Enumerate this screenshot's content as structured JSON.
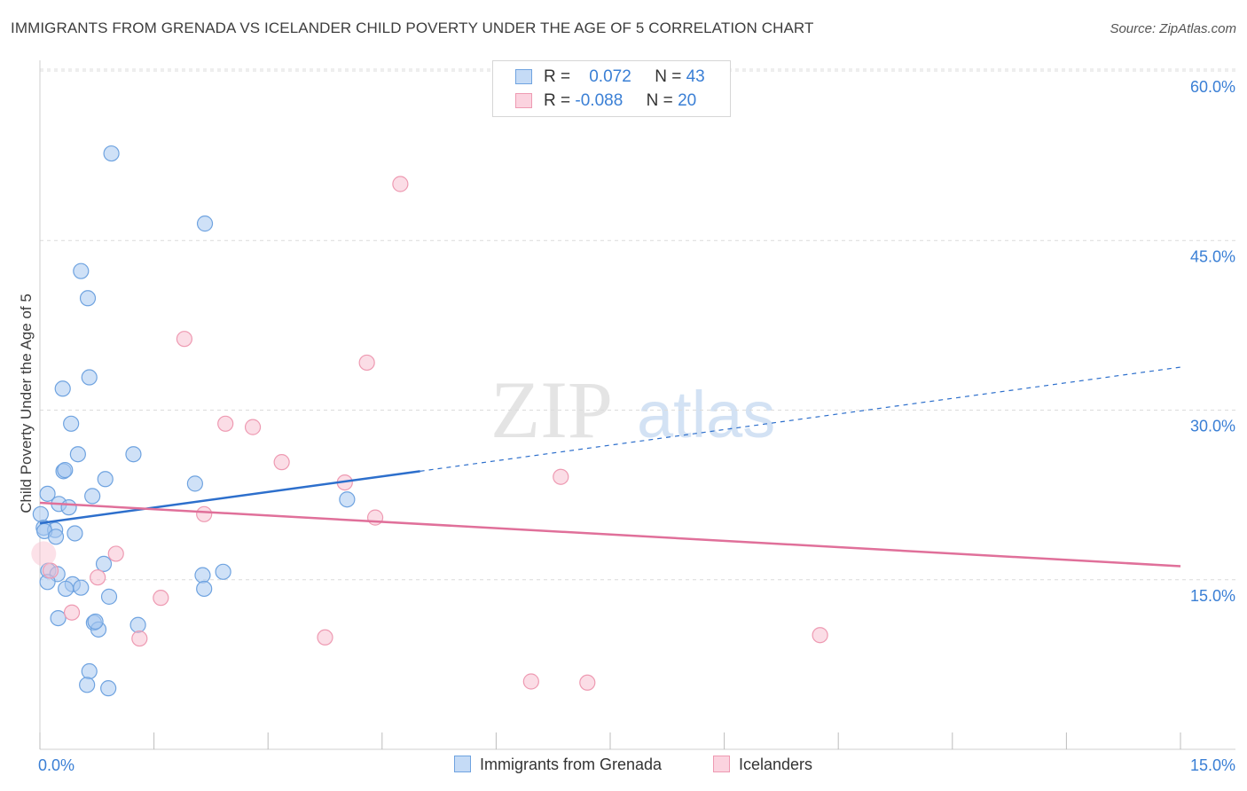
{
  "title": "IMMIGRANTS FROM GRENADA VS ICELANDER CHILD POVERTY UNDER THE AGE OF 5 CORRELATION CHART",
  "source": "Source: ZipAtlas.com",
  "watermark": {
    "zip": "ZIP",
    "atlas": "atlas"
  },
  "legend": {
    "series1": {
      "r_label": "R =",
      "r_value": "0.072",
      "n_label": "N =",
      "n_value": "43"
    },
    "series2": {
      "r_label": "R =",
      "r_value": "-0.088",
      "n_label": "N =",
      "n_value": "20"
    }
  },
  "bottom_legend": {
    "series1": "Immigrants from Grenada",
    "series2": "Icelanders"
  },
  "colors": {
    "series1_fill": "#a8c8f0",
    "series1_stroke": "#6fa3e0",
    "series1_line": "#2d6fcc",
    "series2_fill": "#f8bccd",
    "series2_stroke": "#ee9ab2",
    "series2_line": "#e0709a",
    "tick_label": "#3a7fd5",
    "grid": "#dcdcdc"
  },
  "chart_data": {
    "type": "scatter",
    "title": "IMMIGRANTS FROM GRENADA VS ICELANDER CHILD POVERTY UNDER THE AGE OF 5 CORRELATION CHART",
    "xlabel": "",
    "ylabel": "Child Poverty Under the Age of 5",
    "xlim": [
      0,
      15
    ],
    "ylim": [
      0,
      63
    ],
    "x_tick_labels": [
      "0.0%",
      "15.0%"
    ],
    "y_ticks": [
      15,
      30,
      45,
      60
    ],
    "y_tick_labels": [
      "15.0%",
      "30.0%",
      "45.0%",
      "60.0%"
    ],
    "series": [
      {
        "name": "Immigrants from Grenada",
        "points": [
          [
            0.94,
            52.7
          ],
          [
            2.17,
            46.5
          ],
          [
            0.54,
            42.3
          ],
          [
            0.63,
            39.9
          ],
          [
            0.3,
            31.9
          ],
          [
            0.65,
            32.9
          ],
          [
            0.41,
            28.8
          ],
          [
            0.5,
            26.1
          ],
          [
            1.23,
            26.1
          ],
          [
            0.31,
            24.6
          ],
          [
            0.33,
            24.7
          ],
          [
            0.86,
            23.9
          ],
          [
            2.04,
            23.5
          ],
          [
            0.1,
            22.6
          ],
          [
            0.69,
            22.4
          ],
          [
            4.04,
            22.1
          ],
          [
            0.25,
            21.7
          ],
          [
            0.38,
            21.4
          ],
          [
            0.01,
            20.8
          ],
          [
            0.05,
            19.6
          ],
          [
            0.2,
            19.4
          ],
          [
            0.06,
            19.3
          ],
          [
            0.21,
            18.8
          ],
          [
            0.46,
            19.1
          ],
          [
            0.84,
            16.4
          ],
          [
            0.11,
            15.8
          ],
          [
            0.23,
            15.5
          ],
          [
            2.14,
            15.4
          ],
          [
            2.41,
            15.7
          ],
          [
            0.1,
            14.8
          ],
          [
            0.43,
            14.6
          ],
          [
            0.54,
            14.3
          ],
          [
            0.34,
            14.2
          ],
          [
            2.16,
            14.2
          ],
          [
            0.91,
            13.5
          ],
          [
            0.24,
            11.6
          ],
          [
            0.71,
            11.2
          ],
          [
            0.77,
            10.6
          ],
          [
            1.29,
            11.0
          ],
          [
            0.65,
            6.9
          ],
          [
            0.62,
            5.7
          ],
          [
            0.9,
            5.4
          ],
          [
            0.73,
            11.3
          ]
        ]
      },
      {
        "name": "Icelanders",
        "points": [
          [
            4.74,
            50.0
          ],
          [
            1.9,
            36.3
          ],
          [
            4.3,
            34.2
          ],
          [
            2.44,
            28.8
          ],
          [
            2.8,
            28.5
          ],
          [
            3.18,
            25.4
          ],
          [
            6.85,
            24.1
          ],
          [
            4.01,
            23.6
          ],
          [
            2.16,
            20.8
          ],
          [
            4.41,
            20.5
          ],
          [
            1.0,
            17.3
          ],
          [
            0.76,
            15.2
          ],
          [
            0.14,
            15.8
          ],
          [
            1.59,
            13.4
          ],
          [
            0.42,
            12.1
          ],
          [
            1.31,
            9.8
          ],
          [
            3.75,
            9.9
          ],
          [
            10.26,
            10.1
          ],
          [
            6.46,
            6.0
          ],
          [
            7.2,
            5.9
          ]
        ]
      }
    ],
    "trend_lines": [
      {
        "series": "Immigrants from Grenada",
        "x_start": 0,
        "y_start": 20.0,
        "x_solid_end": 5.0,
        "y_solid_end": 24.6,
        "x_end": 15.0,
        "y_end": 33.8
      },
      {
        "series": "Icelanders",
        "x_start": 0,
        "y_start": 21.8,
        "x_end": 15.0,
        "y_end": 16.2
      }
    ]
  }
}
